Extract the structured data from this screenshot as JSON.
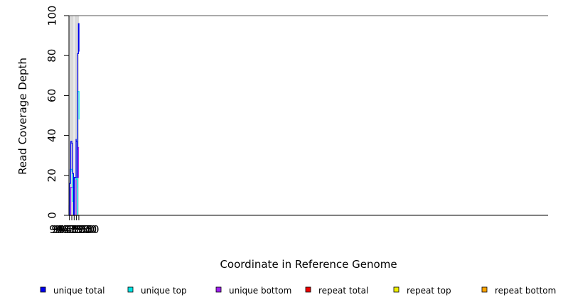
{
  "chart_data": {
    "type": "line",
    "title": "",
    "xlabel": "Coordinate in Reference Genome",
    "ylabel": "Read Coverage Depth",
    "xlim": [
      943739,
      953953
    ],
    "ylim": [
      0,
      100
    ],
    "xticks": [
      943750,
      943800,
      943850,
      943900,
      943950
    ],
    "yticks": [
      0,
      20,
      40,
      60,
      80,
      100
    ],
    "grid": false,
    "legend_position": "bottom",
    "background_regions": [
      {
        "x0": 943739,
        "x1": 943839,
        "color": "#d9d9d9"
      },
      {
        "x0": 943854,
        "x1": 943953,
        "color": "#d9d9d9"
      }
    ],
    "series": [
      {
        "name": "unique total",
        "color": "#0000ee",
        "x": [
          943739,
          943740,
          943741,
          943742,
          943752,
          943773,
          943777,
          943778,
          943801,
          943814,
          943815,
          943836,
          943838,
          943839,
          943854,
          943891,
          943892,
          943916,
          943918,
          943919,
          943921,
          943922,
          943923,
          943941,
          943953
        ],
        "y": [
          5,
          1,
          1,
          0,
          16,
          23,
          36,
          37,
          36,
          35,
          21,
          14,
          14,
          0,
          19,
          38,
          37,
          19,
          33,
          33,
          80,
          80,
          81,
          96,
          82
        ]
      },
      {
        "name": "unique top",
        "color": "#00e5e5",
        "x": [
          943739,
          943742,
          943752,
          943773,
          943777,
          943801,
          943814,
          943815,
          943836,
          943838,
          943839,
          943854,
          943891,
          943892,
          943916,
          943917,
          943919,
          943920,
          943921,
          943922,
          943923,
          943953
        ],
        "y": [
          0,
          0,
          16,
          23,
          23,
          22,
          22,
          7,
          0,
          0,
          0,
          19,
          19,
          18,
          0,
          0,
          14,
          14,
          61,
          61,
          62,
          48
        ]
      },
      {
        "name": "unique bottom",
        "color": "#a020f0",
        "x": [
          943739,
          943777,
          943778,
          943839,
          943854,
          943891,
          943941,
          943953
        ],
        "y": [
          0,
          13,
          14,
          0,
          0,
          19,
          34,
          34
        ]
      },
      {
        "name": "repeat total",
        "color": "#ee0000",
        "x": [
          943739,
          943953
        ],
        "y": [
          0,
          0
        ]
      },
      {
        "name": "repeat top",
        "color": "#eeee00",
        "x": [
          943739,
          943953
        ],
        "y": [
          0,
          0
        ]
      },
      {
        "name": "repeat bottom",
        "color": "#ffa500",
        "x": [
          943739,
          943953
        ],
        "y": [
          0,
          0
        ]
      }
    ]
  }
}
